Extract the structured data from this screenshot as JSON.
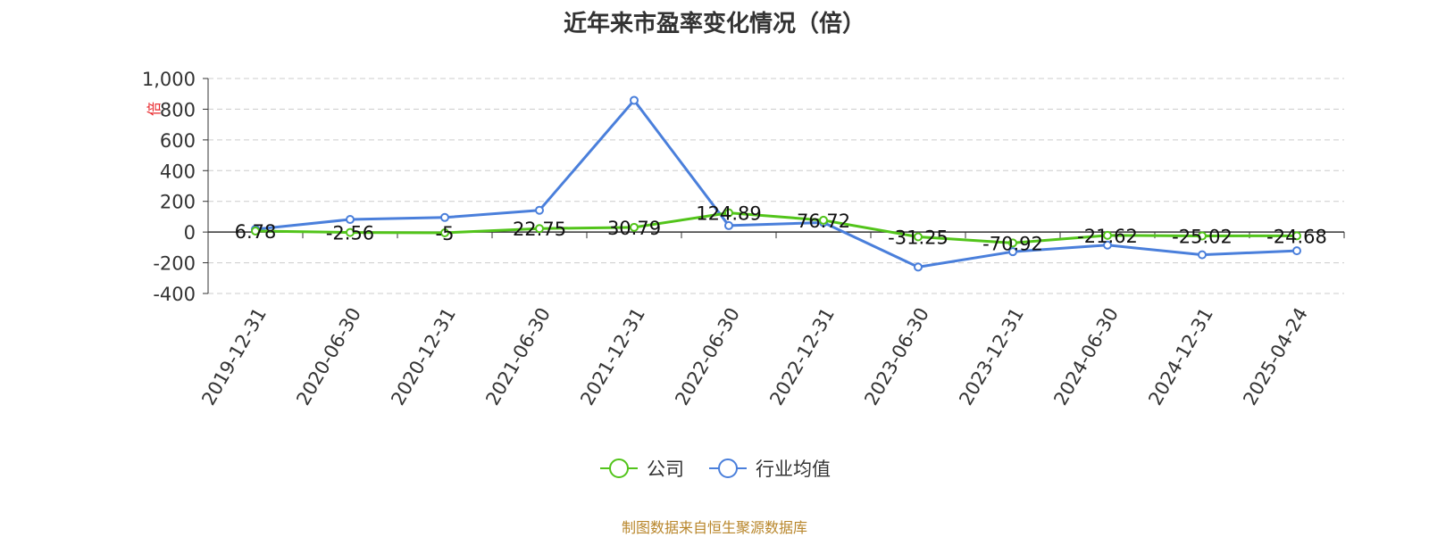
{
  "chart_data": {
    "type": "line",
    "title": "近年来市盈率变化情况（倍）",
    "ylabel": "倍",
    "ylim": [
      -400,
      1000
    ],
    "yticks": [
      1000,
      800,
      600,
      400,
      200,
      0,
      -200,
      -400
    ],
    "ytick_labels": [
      "1,000",
      "800",
      "600",
      "400",
      "200",
      "0",
      "-200",
      "-400"
    ],
    "grid": true,
    "legend_position": "bottom",
    "categories": [
      "2019-12-31",
      "2020-06-30",
      "2020-12-31",
      "2021-06-30",
      "2021-12-31",
      "2022-06-30",
      "2022-12-31",
      "2023-06-30",
      "2023-12-31",
      "2024-06-30",
      "2024-12-31",
      "2025-04-24"
    ],
    "series": [
      {
        "name": "公司",
        "color": "#52c41a",
        "values": [
          6.78,
          -2.56,
          -5,
          22.75,
          30.79,
          124.89,
          76.72,
          -31.25,
          -70.92,
          -21.62,
          -25.02,
          -24.68
        ],
        "labels": [
          "6.78",
          "-2.56",
          "-5",
          "22.75",
          "30.79",
          "124.89",
          "76.72",
          "-31.25",
          "-70.92",
          "-21.62",
          "-25.02",
          "-24.68"
        ]
      },
      {
        "name": "行业均值",
        "color": "#4a7fdb",
        "values": [
          18,
          82,
          95,
          142,
          858,
          42,
          62,
          -228,
          -128,
          -85,
          -148,
          -122
        ]
      }
    ]
  },
  "legend": {
    "items": [
      {
        "label": "公司",
        "color": "#52c41a"
      },
      {
        "label": "行业均值",
        "color": "#4a7fdb"
      }
    ]
  },
  "source_text": "制图数据来自恒生聚源数据库"
}
